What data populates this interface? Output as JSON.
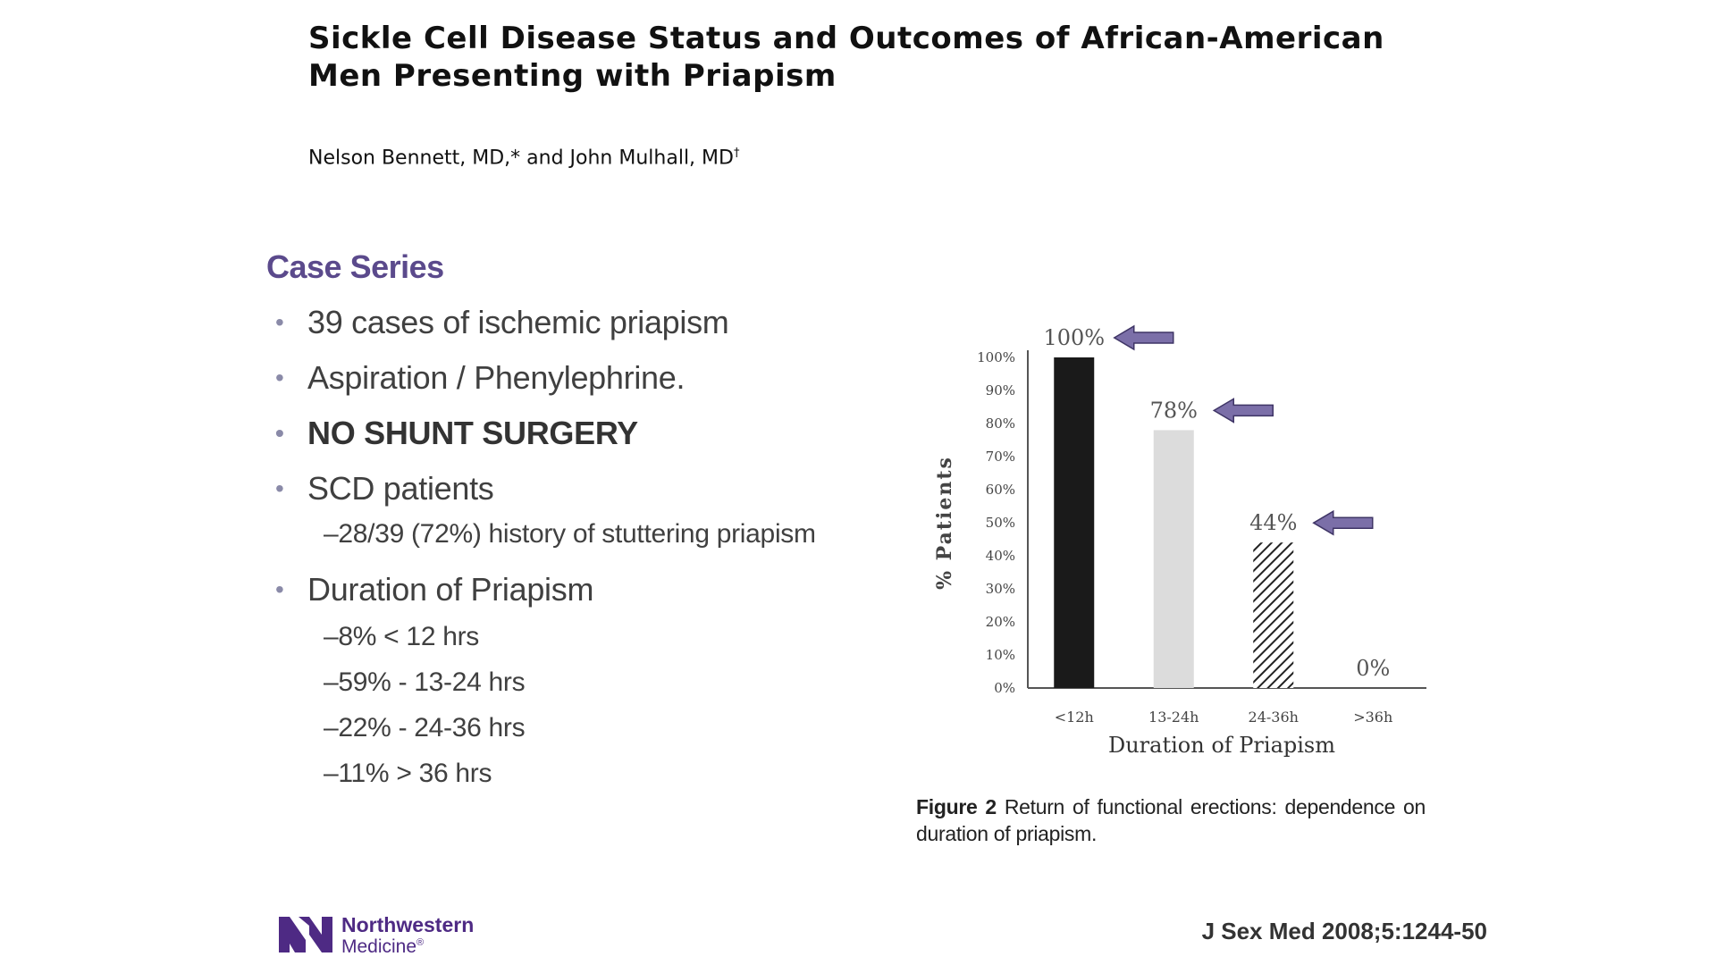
{
  "paper": {
    "title": "Sickle Cell Disease Status and Outcomes of African-American Men Presenting with Priapism",
    "authors": "Nelson Bennett, MD,* and John Mulhall, MD",
    "authors_mark": "†"
  },
  "section": {
    "heading": "Case Series",
    "bullets": [
      {
        "text": "39 cases of ischemic priapism",
        "bold": false,
        "subs": []
      },
      {
        "text": "Aspiration / Phenylephrine.",
        "bold": false,
        "subs": []
      },
      {
        "text": "NO SHUNT SURGERY",
        "bold": true,
        "subs": []
      },
      {
        "text": "SCD patients",
        "bold": false,
        "subs": [
          "–28/39 (72%) history of stuttering priapism"
        ]
      },
      {
        "text": "Duration of Priapism",
        "bold": false,
        "subs": [
          "–8% < 12 hrs",
          "–59% - 13-24 hrs",
          "–22% - 24-36 hrs",
          "–11% > 36 hrs"
        ]
      }
    ]
  },
  "chart_data": {
    "type": "bar",
    "categories": [
      "<12h",
      "13-24h",
      "24-36h",
      ">36h"
    ],
    "values": [
      100,
      78,
      44,
      0
    ],
    "data_labels": [
      "100%",
      "78%",
      "44%",
      "0%"
    ],
    "bar_styles": [
      "solid-black",
      "light-gray",
      "hatched",
      "none"
    ],
    "arrows_on": [
      "<12h",
      "13-24h",
      "24-36h"
    ],
    "xlabel": "Duration of Priapism",
    "ylabel": "% Patients",
    "ylim": [
      0,
      100
    ],
    "yticks": [
      "0%",
      "10%",
      "20%",
      "30%",
      "40%",
      "50%",
      "60%",
      "70%",
      "80%",
      "90%",
      "100%"
    ],
    "grid": false,
    "colors": {
      "bar_dark": "#1a1a1a",
      "bar_light": "#dcdcdc",
      "arrow": "#7b6fa8",
      "arrow_stroke": "#3f3566"
    }
  },
  "caption": {
    "label": "Figure 2",
    "text": "Return of functional erections: dependence on duration of priapism."
  },
  "footer": {
    "logo_line1": "Northwestern",
    "logo_line2": "Medicine",
    "logo_mark": "®",
    "citation": "J Sex Med 2008;5:1244-50"
  }
}
